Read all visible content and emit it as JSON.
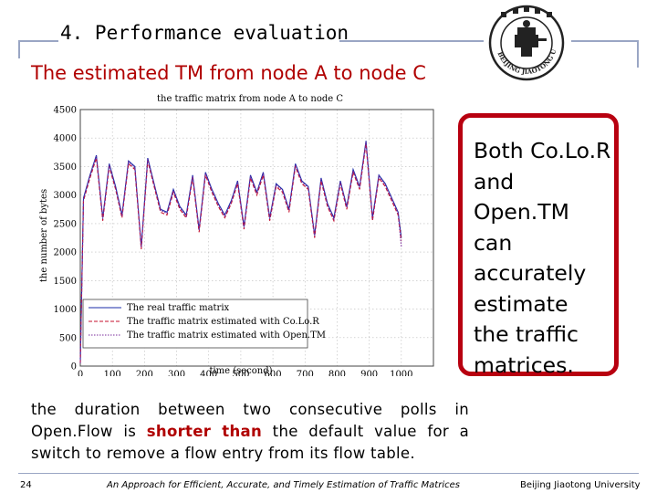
{
  "header": {
    "section_title": "4. Performance evaluation"
  },
  "logo": {
    "icon": "university-seal-icon",
    "ring_text": "BEIJING JIAOTONG UNIVERSITY"
  },
  "subtitle": "The estimated TM from node A to node C",
  "callout": {
    "lines": [
      "Both Co.Lo.R",
      "and",
      "Open.TM",
      "can",
      "accurately",
      "estimate",
      "the traffic",
      "matrices."
    ]
  },
  "body": {
    "part1": "the duration between two consecutive polls in Open.Flow is",
    "highlight": "shorter than",
    "part2": "the default value for a switch to remove a flow entry from its flow table."
  },
  "footer": {
    "page_number": "24",
    "center_text": "An Approach for Efficient, Accurate, and Timely Estimation of Traffic Matrices",
    "right_text": "Beijing Jiaotong University"
  },
  "colors": {
    "accent_red": "#b00000",
    "callout_border": "#b80010",
    "frame": "#9aa6c4"
  },
  "chart_data": {
    "type": "line",
    "title": "the traffic matrix from node A to node C",
    "xlabel": "time (second)",
    "ylabel": "the number of bytes",
    "xlim": [
      0,
      1100
    ],
    "ylim": [
      0,
      4500
    ],
    "xticks": [
      0,
      100,
      200,
      300,
      400,
      500,
      600,
      700,
      800,
      900,
      1000
    ],
    "yticks": [
      0,
      500,
      1000,
      1500,
      2000,
      2500,
      3000,
      3500,
      4000,
      4500
    ],
    "legend_position": "bottom-left",
    "x": [
      0,
      10,
      30,
      50,
      70,
      90,
      110,
      130,
      150,
      170,
      190,
      210,
      230,
      250,
      270,
      290,
      310,
      330,
      350,
      370,
      390,
      410,
      430,
      450,
      470,
      490,
      510,
      530,
      550,
      570,
      590,
      610,
      630,
      650,
      670,
      690,
      710,
      730,
      750,
      770,
      790,
      810,
      830,
      850,
      870,
      890,
      910,
      930,
      950,
      970,
      990,
      1000
    ],
    "series": [
      {
        "name": "The real traffic matrix",
        "style": "solid",
        "color": "#1a2ba8",
        "values": [
          50,
          2950,
          3350,
          3700,
          2600,
          3550,
          3150,
          2650,
          3600,
          3500,
          2100,
          3650,
          3200,
          2750,
          2700,
          3100,
          2800,
          2650,
          3350,
          2400,
          3400,
          3100,
          2850,
          2650,
          2900,
          3250,
          2450,
          3350,
          3050,
          3400,
          2600,
          3200,
          3100,
          2750,
          3550,
          3250,
          3150,
          2300,
          3300,
          2850,
          2600,
          3250,
          2800,
          3450,
          3150,
          3950,
          2600,
          3350,
          3200,
          2950,
          2700,
          2250
        ]
      },
      {
        "name": "The traffic matrix estimated with Co.Lo.R",
        "style": "dashed",
        "color": "#c4102e",
        "values": [
          50,
          2900,
          3300,
          3650,
          2550,
          3500,
          3100,
          2600,
          3550,
          3450,
          2050,
          3600,
          3150,
          2700,
          2650,
          3050,
          2750,
          2600,
          3300,
          2350,
          3350,
          3050,
          2800,
          2600,
          2850,
          3200,
          2400,
          3300,
          3000,
          3350,
          2550,
          3150,
          3050,
          2700,
          3500,
          3200,
          3100,
          2250,
          3250,
          2800,
          2550,
          3200,
          2750,
          3400,
          3100,
          3900,
          2550,
          3300,
          3150,
          2900,
          2650,
          2200
        ]
      },
      {
        "name": "The traffic matrix estimated with Open.TM",
        "style": "dotted",
        "color": "#7a2a9a",
        "values": [
          50,
          2920,
          3330,
          3680,
          2580,
          3530,
          3120,
          2630,
          3580,
          3480,
          2080,
          3630,
          3180,
          2730,
          2680,
          3080,
          2780,
          2630,
          3330,
          2380,
          3380,
          3080,
          2830,
          2630,
          2880,
          3230,
          2430,
          3330,
          3030,
          3380,
          2580,
          3180,
          3080,
          2730,
          3530,
          3230,
          3130,
          2280,
          3280,
          2830,
          2580,
          3230,
          2780,
          3430,
          3130,
          3930,
          2580,
          3330,
          3180,
          2930,
          2680,
          2100
        ]
      }
    ]
  }
}
